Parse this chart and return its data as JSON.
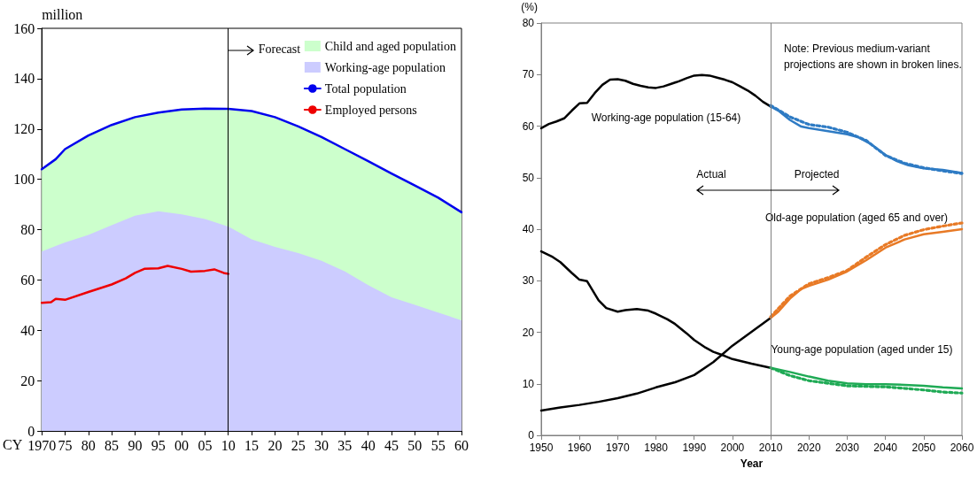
{
  "chart_data": [
    {
      "type": "area",
      "xlabel": "CY",
      "ylabel": "million",
      "xlim": [
        1970,
        2060
      ],
      "xticks": [
        1970,
        {
          "value": 1975,
          "label": "75"
        },
        {
          "value": 1980,
          "label": "80"
        },
        {
          "value": 1985,
          "label": "85"
        },
        {
          "value": 1990,
          "label": "90"
        },
        {
          "value": 1995,
          "label": "95"
        },
        {
          "value": 2000,
          "label": "00"
        },
        {
          "value": 2005,
          "label": "05"
        },
        {
          "value": 2010,
          "label": "10"
        },
        {
          "value": 2015,
          "label": "15"
        },
        {
          "value": 2020,
          "label": "20"
        },
        {
          "value": 2025,
          "label": "25"
        },
        {
          "value": 2030,
          "label": "30"
        },
        {
          "value": 2035,
          "label": "35"
        },
        {
          "value": 2040,
          "label": "40"
        },
        {
          "value": 2045,
          "label": "45"
        },
        {
          "value": 2050,
          "label": "50"
        },
        {
          "value": 2055,
          "label": "55"
        },
        {
          "value": 2060,
          "label": "60"
        }
      ],
      "ylim": [
        0,
        160
      ],
      "yticks": [
        0,
        20,
        40,
        60,
        80,
        100,
        120,
        140,
        160
      ],
      "stacked": true,
      "grid": false,
      "legend": "top right",
      "marker": "none",
      "ref_lines": [
        {
          "axis": "x",
          "value": 2010,
          "label": "Forecast",
          "color": "#000000"
        }
      ],
      "series": [
        {
          "name": "Working-age population",
          "color": "#ccccff",
          "x": [
            1970,
            1973,
            1975,
            1980,
            1985,
            1990,
            1995,
            2000,
            2005,
            2010,
            2015,
            2020,
            2025,
            2030,
            2035,
            2040,
            2045,
            2050,
            2055,
            2060
          ],
          "values": [
            71.3,
            73.5,
            74.9,
            77.9,
            81.8,
            85.5,
            87.3,
            86.1,
            84.2,
            81.2,
            76.1,
            73.1,
            70.7,
            67.6,
            63.4,
            57.9,
            53.1,
            50.1,
            47,
            44
          ]
        },
        {
          "name": "Child and aged population",
          "color": "#ccffcc",
          "x": [
            1970,
            1973,
            1975,
            1980,
            1985,
            1990,
            1995,
            2000,
            2005,
            2010,
            2015,
            2020,
            2025,
            2030,
            2035,
            2040,
            2045,
            2050,
            2055,
            2060
          ],
          "values": [
            32.7,
            34.5,
            37.1,
            39.5,
            39.8,
            39.2,
            39.2,
            41.6,
            43.9,
            46.8,
            51,
            51.6,
            50.3,
            49.2,
            48.6,
            49.3,
            49.2,
            47.4,
            45.7,
            42.9
          ]
        },
        {
          "name": "Total population",
          "type": "line",
          "color": "#0000ee",
          "x": [
            1970,
            1973,
            1975,
            1980,
            1985,
            1990,
            1995,
            2000,
            2005,
            2010,
            2015,
            2020,
            2025,
            2030,
            2035,
            2040,
            2045,
            2050,
            2055,
            2060
          ],
          "values": [
            104,
            108,
            112,
            117.4,
            121.6,
            124.7,
            126.5,
            127.7,
            128.1,
            128,
            127.1,
            124.7,
            121,
            116.8,
            112,
            107.2,
            102.3,
            97.5,
            92.7,
            86.9
          ]
        },
        {
          "name": "Employed persons",
          "type": "line",
          "color": "#ee0000",
          "x": [
            1970,
            1972,
            1973,
            1975,
            1980,
            1985,
            1988,
            1990,
            1992,
            1995,
            1997,
            2000,
            2002,
            2005,
            2007,
            2009,
            2010
          ],
          "values": [
            50.9,
            51.2,
            52.5,
            52.1,
            55.2,
            58.2,
            60.6,
            62.8,
            64.4,
            64.6,
            65.6,
            64.4,
            63.3,
            63.6,
            64.2,
            62.8,
            62.4
          ]
        }
      ]
    },
    {
      "type": "line",
      "xlabel": "Year",
      "ylabel": "(%)",
      "xlim": [
        1950,
        2060
      ],
      "xticks": [
        1950,
        1960,
        1970,
        1980,
        1990,
        2000,
        2010,
        2020,
        2030,
        2040,
        2050,
        2060
      ],
      "ylim": [
        0,
        80
      ],
      "yticks": [
        0,
        10,
        20,
        30,
        40,
        50,
        60,
        70,
        80
      ],
      "grid": false,
      "legend": false,
      "marker": "none",
      "ref_lines": [
        {
          "axis": "x",
          "value": 2010,
          "color": "#808080"
        }
      ],
      "annotations": [
        "Note: Previous medium-variant projections are shown in broken lines.",
        "Working-age population (15-64)",
        "Old-age population (aged 65 and over)",
        "Actual",
        "Projected",
        "Young-age population (aged under 15)"
      ],
      "series": [
        {
          "color": "#000000",
          "line_style": "solid",
          "x": [
            1950,
            1952,
            1954,
            1956,
            1958,
            1960,
            1962,
            1964,
            1966,
            1968,
            1970,
            1972,
            1974,
            1976,
            1978,
            1980,
            1982,
            1984,
            1986,
            1988,
            1990,
            1992,
            1994,
            1996,
            1998,
            2000,
            2002,
            2004,
            2006,
            2008,
            2010
          ],
          "values": [
            59.6,
            60.4,
            60.9,
            61.5,
            63,
            64.4,
            64.5,
            66.4,
            68,
            69,
            69.1,
            68.8,
            68.2,
            67.8,
            67.5,
            67.4,
            67.7,
            68.2,
            68.7,
            69.3,
            69.8,
            69.9,
            69.8,
            69.4,
            69,
            68.5,
            67.7,
            66.9,
            65.9,
            64.7,
            63.8
          ]
        },
        {
          "color": "#2e7bc4",
          "line_style": "dotted",
          "x": [
            2010,
            2015,
            2020,
            2025,
            2030,
            2035,
            2040,
            2045,
            2050,
            2055,
            2060
          ],
          "values": [
            64,
            61.8,
            60.3,
            59.8,
            58.8,
            57.2,
            54.3,
            52.8,
            51.9,
            51.3,
            50.8
          ]
        },
        {
          "color": "#2e7bc4",
          "line_style": "solid",
          "x": [
            2010,
            2012,
            2015,
            2018,
            2020,
            2025,
            2030,
            2033,
            2036,
            2040,
            2043,
            2046,
            2050,
            2055,
            2060
          ],
          "values": [
            63.8,
            63,
            61.2,
            59.9,
            59.6,
            59,
            58.4,
            57.8,
            56.6,
            54.4,
            53.2,
            52.4,
            51.8,
            51.5,
            50.9
          ]
        },
        {
          "color": "#000000",
          "line_style": "solid",
          "x": [
            1950,
            1955,
            1960,
            1965,
            1970,
            1975,
            1980,
            1985,
            1990,
            1995,
            2000,
            2005,
            2010
          ],
          "values": [
            4.8,
            5.4,
            5.9,
            6.5,
            7.2,
            8.1,
            9.3,
            10.3,
            11.7,
            14.2,
            17.4,
            20.1,
            22.8
          ]
        },
        {
          "color": "#e87a26",
          "line_style": "dotted",
          "x": [
            2010,
            2015,
            2020,
            2025,
            2030,
            2035,
            2040,
            2045,
            2050,
            2055,
            2060
          ],
          "values": [
            23,
            27,
            29.4,
            30.6,
            32,
            34.6,
            37,
            38.8,
            39.9,
            40.6,
            41.2
          ]
        },
        {
          "color": "#e87a26",
          "line_style": "solid",
          "x": [
            2010,
            2012,
            2015,
            2018,
            2020,
            2025,
            2030,
            2035,
            2040,
            2045,
            2050,
            2055,
            2060
          ],
          "values": [
            22.8,
            24,
            26.5,
            28.4,
            29,
            30.2,
            31.8,
            34,
            36.4,
            38,
            39,
            39.5,
            40
          ]
        },
        {
          "color": "#000000",
          "line_style": "solid",
          "x": [
            1950,
            1953,
            1955,
            1958,
            1960,
            1962,
            1965,
            1967,
            1970,
            1972,
            1975,
            1978,
            1980,
            1983,
            1985,
            1988,
            1990,
            1993,
            1995,
            1998,
            2000,
            2005,
            2010
          ],
          "values": [
            35.7,
            34.6,
            33.6,
            31.5,
            30.2,
            29.9,
            26.2,
            24.7,
            24,
            24.3,
            24.5,
            24.2,
            23.6,
            22.5,
            21.6,
            19.8,
            18.5,
            17,
            16.2,
            15.4,
            14.8,
            13.9,
            13.1
          ]
        },
        {
          "color": "#1faa55",
          "line_style": "dotted",
          "x": [
            2010,
            2015,
            2020,
            2025,
            2030,
            2035,
            2040,
            2045,
            2050,
            2055,
            2060
          ],
          "values": [
            13.1,
            11.6,
            10.6,
            10.1,
            9.6,
            9.5,
            9.4,
            9.1,
            8.8,
            8.4,
            8.2
          ]
        },
        {
          "color": "#1faa55",
          "line_style": "solid",
          "x": [
            2010,
            2015,
            2020,
            2025,
            2030,
            2035,
            2040,
            2045,
            2050,
            2055,
            2060
          ],
          "values": [
            13.1,
            12.3,
            11.4,
            10.6,
            10.1,
            9.9,
            9.9,
            9.8,
            9.6,
            9.3,
            9.1
          ]
        }
      ]
    }
  ]
}
